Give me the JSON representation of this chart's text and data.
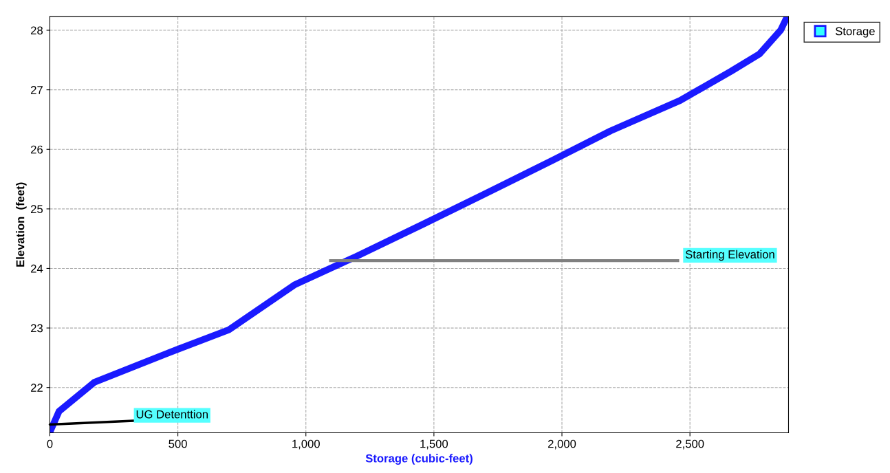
{
  "chart_data": {
    "type": "line",
    "xlabel": "Storage (cubic-feet)",
    "ylabel": "Elevation  (feet)",
    "x": [
      0,
      36,
      174,
      450,
      699,
      958,
      1196,
      1461,
      1693,
      1961,
      2190,
      2461,
      2660,
      2771,
      2854,
      2880
    ],
    "series": [
      {
        "name": "Storage",
        "color": "#1a1aff",
        "values": [
          21.25,
          21.6,
          22.09,
          22.56,
          22.97,
          23.73,
          24.2,
          24.75,
          25.24,
          25.81,
          26.31,
          26.82,
          27.31,
          27.6,
          28.0,
          28.23
        ]
      }
    ],
    "xlim": [
      0,
      2885
    ],
    "ylim": [
      21.24,
      28.23
    ],
    "xticks": [
      0,
      500,
      {
        "value": 1000,
        "label": "1,000"
      },
      {
        "value": 1500,
        "label": "1,500"
      },
      {
        "value": 2000,
        "label": "2,000"
      },
      {
        "value": 2500,
        "label": "2,500"
      }
    ],
    "yticks": [
      22,
      23,
      24,
      25,
      26,
      27,
      28
    ],
    "ref_lines": [
      {
        "axis": "y",
        "value": 24.13,
        "label": "Starting Elevation",
        "color": "#808080"
      }
    ],
    "annotations": [
      {
        "text": "UG Detenttion",
        "x": 0,
        "y": 21.38
      }
    ],
    "grid": true,
    "legend": "top right",
    "marker": "none",
    "line_style": "solid"
  }
}
